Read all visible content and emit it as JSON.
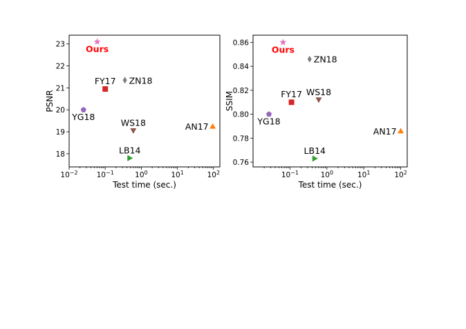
{
  "chart_data": [
    {
      "type": "scatter",
      "xlabel": "Test time (sec.)",
      "ylabel": "PSNR",
      "x_scale": "log",
      "xlim": [
        0.01,
        150
      ],
      "ylim": [
        17.4,
        23.4
      ],
      "x_ticks": [
        0.01,
        0.1,
        1,
        10,
        100
      ],
      "x_tick_labels": [
        [
          "10",
          "−2"
        ],
        [
          "10",
          "−1"
        ],
        [
          "10",
          "0"
        ],
        [
          "10",
          "1"
        ],
        [
          "10",
          "2"
        ]
      ],
      "y_ticks": [
        18,
        19,
        20,
        21,
        22,
        23
      ],
      "y_tick_labels": [
        "18",
        "19",
        "20",
        "21",
        "22",
        "23"
      ],
      "grid": false,
      "points": [
        {
          "label": "Ours",
          "x": 0.06,
          "y": 23.1,
          "marker": "star",
          "color": "#e377c2",
          "label_color": "#ff0000",
          "bold": true,
          "anchor": "below"
        },
        {
          "label": "ZN18",
          "x": 0.35,
          "y": 21.35,
          "marker": "thin-diamond",
          "color": "#7f7f7f",
          "label_color": "#000000",
          "anchor": "right"
        },
        {
          "label": "FY17",
          "x": 0.1,
          "y": 20.95,
          "marker": "square",
          "color": "#d62728",
          "label_color": "#000000",
          "anchor": "above"
        },
        {
          "label": "YG18",
          "x": 0.025,
          "y": 20.0,
          "marker": "pentagon",
          "color": "#9467bd",
          "label_color": "#000000",
          "anchor": "below"
        },
        {
          "label": "WS18",
          "x": 0.6,
          "y": 19.05,
          "marker": "triangle-down",
          "color": "#8c564b",
          "label_color": "#000000",
          "anchor": "above"
        },
        {
          "label": "AN17",
          "x": 95,
          "y": 19.25,
          "marker": "triangle-up",
          "color": "#ff7f0e",
          "label_color": "#000000",
          "anchor": "left"
        },
        {
          "label": "LB14",
          "x": 0.48,
          "y": 17.8,
          "marker": "triangle-right",
          "color": "#2ca02c",
          "label_color": "#000000",
          "anchor": "above"
        }
      ]
    },
    {
      "type": "scatter",
      "xlabel": "Test time (sec.)",
      "ylabel": "SSIM",
      "x_scale": "log",
      "xlim": [
        0.01,
        150
      ],
      "ylim": [
        0.756,
        0.866
      ],
      "x_ticks": [
        0.1,
        1,
        10,
        100
      ],
      "x_tick_labels": [
        [
          "10",
          "−1"
        ],
        [
          "10",
          "0"
        ],
        [
          "10",
          "1"
        ],
        [
          "10",
          "2"
        ]
      ],
      "y_ticks": [
        0.76,
        0.78,
        0.8,
        0.82,
        0.84,
        0.86
      ],
      "y_tick_labels": [
        "0.76",
        "0.78",
        "0.80",
        "0.82",
        "0.84",
        "0.86"
      ],
      "grid": false,
      "points": [
        {
          "label": "Ours",
          "x": 0.065,
          "y": 0.86,
          "marker": "star",
          "color": "#e377c2",
          "label_color": "#ff0000",
          "bold": true,
          "anchor": "below"
        },
        {
          "label": "ZN18",
          "x": 0.34,
          "y": 0.846,
          "marker": "thin-diamond",
          "color": "#7f7f7f",
          "label_color": "#000000",
          "anchor": "right"
        },
        {
          "label": "FY17",
          "x": 0.11,
          "y": 0.81,
          "marker": "square",
          "color": "#d62728",
          "label_color": "#000000",
          "anchor": "above"
        },
        {
          "label": "WS18",
          "x": 0.6,
          "y": 0.812,
          "marker": "triangle-down",
          "color": "#8c564b",
          "label_color": "#000000",
          "anchor": "above"
        },
        {
          "label": "YG18",
          "x": 0.027,
          "y": 0.8,
          "marker": "pentagon",
          "color": "#9467bd",
          "label_color": "#000000",
          "anchor": "below"
        },
        {
          "label": "AN17",
          "x": 100,
          "y": 0.786,
          "marker": "triangle-up",
          "color": "#ff7f0e",
          "label_color": "#000000",
          "anchor": "left"
        },
        {
          "label": "LB14",
          "x": 0.47,
          "y": 0.763,
          "marker": "triangle-right",
          "color": "#2ca02c",
          "label_color": "#000000",
          "anchor": "above"
        }
      ]
    }
  ]
}
